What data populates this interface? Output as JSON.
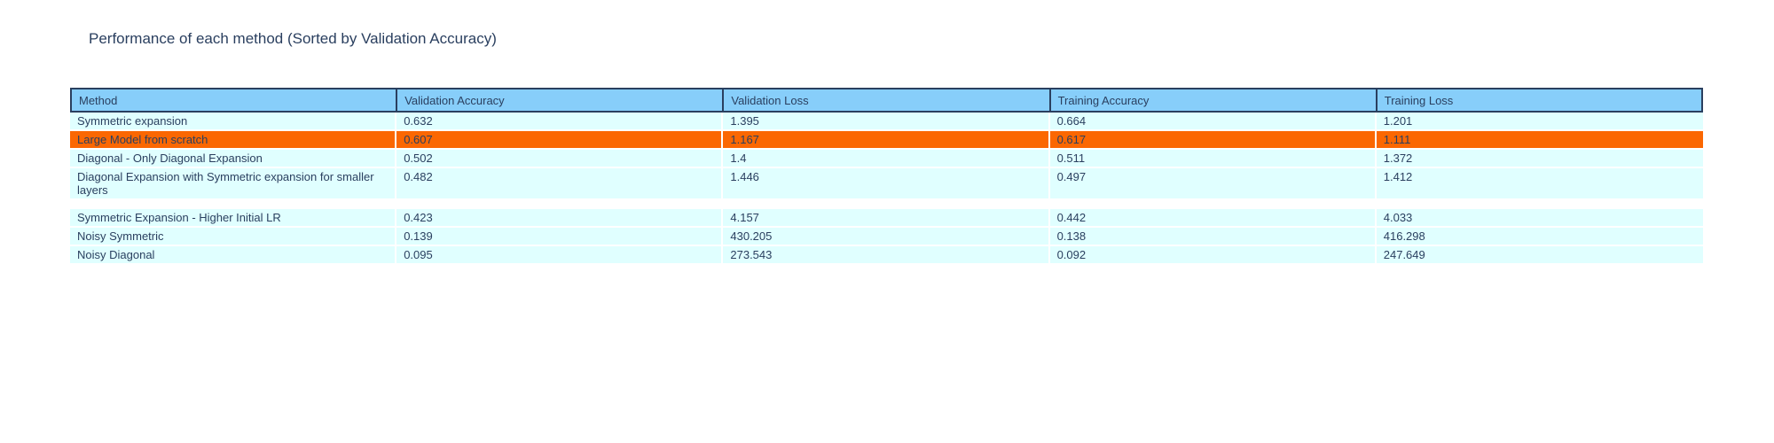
{
  "title": "Performance of each method (Sorted by Validation Accuracy)",
  "colors": {
    "background": "#FFFFFF",
    "header_fill": "#87CEFA",
    "cell_fill": "#E0FFFF",
    "highlight_fill": "#FB6702",
    "line_dark": "#2A3F5F",
    "separator": "#FFFFFF",
    "text": "#2A3F5F"
  },
  "chart_data": {
    "type": "table",
    "title": "Performance of each method (Sorted by Validation Accuracy)",
    "columns": [
      "Method",
      "Validation Accuracy",
      "Validation Loss",
      "Training Accuracy",
      "Training Loss"
    ],
    "rows": [
      {
        "cells": [
          "Symmetric expansion",
          "0.632",
          "1.395",
          "0.664",
          "1.201"
        ],
        "highlighted": false,
        "gap_below": false
      },
      {
        "cells": [
          "Large Model from scratch",
          "0.607",
          "1.167",
          "0.617",
          "1.111"
        ],
        "highlighted": true,
        "gap_below": false
      },
      {
        "cells": [
          "Diagonal - Only Diagonal Expansion",
          "0.502",
          "1.4",
          "0.511",
          "1.372"
        ],
        "highlighted": false,
        "gap_below": false
      },
      {
        "cells": [
          "Diagonal Expansion with Symmetric expansion for smaller layers",
          "0.482",
          "1.446",
          "0.497",
          "1.412"
        ],
        "highlighted": false,
        "gap_below": true
      },
      {
        "cells": [
          "Symmetric Expansion - Higher Initial LR",
          "0.423",
          "4.157",
          "0.442",
          "4.033"
        ],
        "highlighted": false,
        "gap_below": false
      },
      {
        "cells": [
          "Noisy Symmetric",
          "0.139",
          "430.205",
          "0.138",
          "416.298"
        ],
        "highlighted": false,
        "gap_below": false
      },
      {
        "cells": [
          "Noisy Diagonal",
          "0.095",
          "273.543",
          "0.092",
          "247.649"
        ],
        "highlighted": false,
        "gap_below": false
      }
    ]
  }
}
